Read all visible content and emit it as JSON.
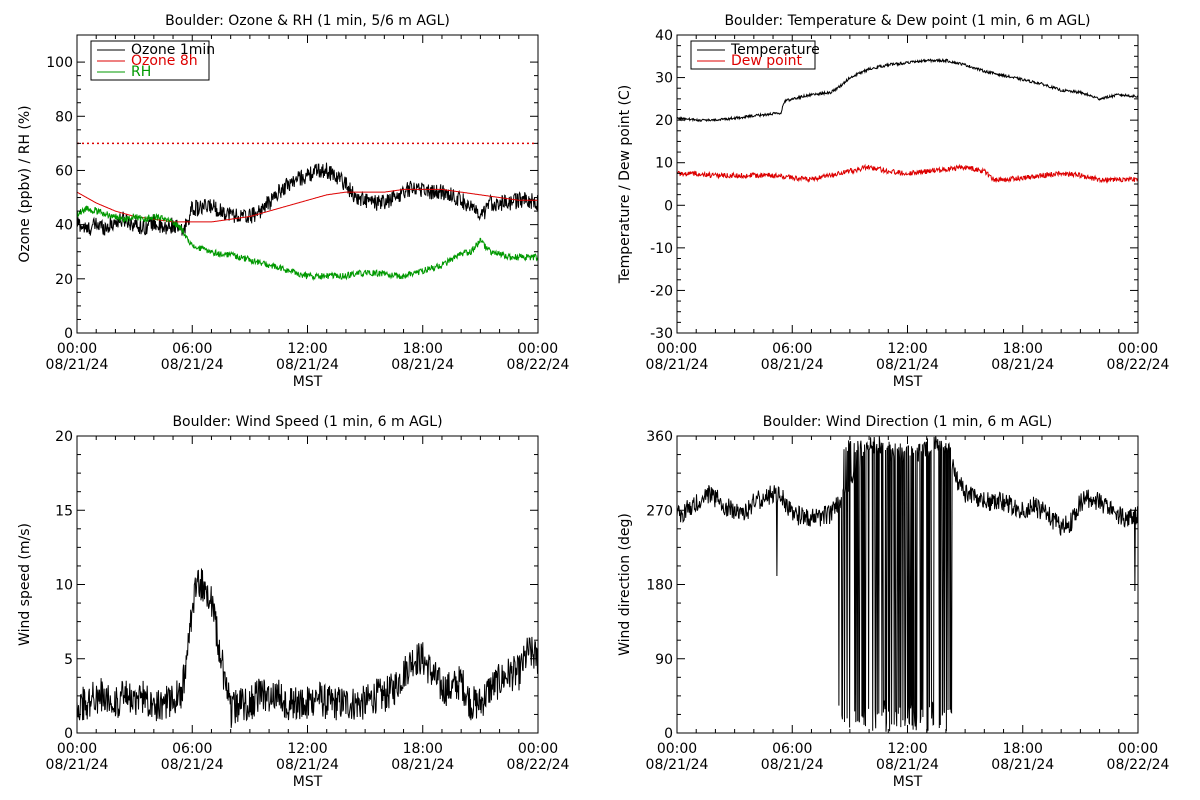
{
  "chart_data": [
    {
      "type": "line",
      "title": "Boulder: Ozone & RH (1 min, 5/6 m AGL)",
      "ylabel": "Ozone (ppbv) / RH (%)",
      "xlabel": "MST",
      "x_ticks": [
        [
          "00:00",
          "08/21/24"
        ],
        [
          "06:00",
          "08/21/24"
        ],
        [
          "12:00",
          "08/21/24"
        ],
        [
          "18:00",
          "08/21/24"
        ],
        [
          "00:00",
          "08/22/24"
        ]
      ],
      "xlim": [
        0,
        24
      ],
      "ylim": [
        0,
        110
      ],
      "yticks": [
        0,
        20,
        40,
        60,
        80,
        100
      ],
      "legend": "top-left",
      "reference_line": {
        "y": 70,
        "color": "#dd0000",
        "style": "dotted"
      },
      "series": [
        {
          "name": "Ozone 1min",
          "color": "#000000",
          "x": [
            0,
            0.5,
            1,
            1.5,
            2,
            2.5,
            3,
            3.5,
            4,
            4.5,
            5,
            5.5,
            6,
            6.5,
            7,
            7.5,
            8,
            8.5,
            9,
            9.5,
            10,
            10.5,
            11,
            11.5,
            12,
            12.5,
            13,
            13.5,
            14,
            14.5,
            15,
            15.5,
            16,
            16.5,
            17,
            17.5,
            18,
            18.5,
            19,
            19.5,
            20,
            20.5,
            21,
            21.5,
            22,
            22.5,
            23,
            23.5,
            24
          ],
          "y": [
            41,
            38,
            40,
            39,
            41,
            42,
            40,
            39,
            41,
            38,
            40,
            37,
            46,
            46,
            47,
            45,
            44,
            43,
            43,
            45,
            48,
            52,
            55,
            57,
            58,
            60,
            60,
            58,
            55,
            50,
            49,
            48,
            48,
            50,
            52,
            54,
            53,
            52,
            52,
            51,
            49,
            47,
            42,
            48,
            48,
            48,
            49,
            49,
            48
          ],
          "noise": 3
        },
        {
          "name": "Ozone 8h",
          "color": "#dd0000",
          "x": [
            0,
            1,
            2,
            3,
            4,
            5,
            6,
            7,
            8,
            9,
            10,
            11,
            12,
            13,
            14,
            15,
            16,
            17,
            18,
            19,
            20,
            21,
            22,
            23,
            24
          ],
          "y": [
            52,
            48,
            45,
            43,
            42,
            41,
            41,
            41,
            42,
            43,
            45,
            47,
            49,
            51,
            52,
            52,
            52,
            53,
            53,
            53,
            52,
            51,
            50,
            49,
            49
          ],
          "noise": 0
        },
        {
          "name": "RH",
          "color": "#009900",
          "x": [
            0,
            0.5,
            1,
            1.5,
            2,
            2.5,
            3,
            3.5,
            4,
            4.5,
            5,
            5.5,
            6,
            6.5,
            7,
            7.5,
            8,
            8.5,
            9,
            9.5,
            10,
            10.5,
            11,
            11.5,
            12,
            12.5,
            13,
            13.5,
            14,
            14.5,
            15,
            15.5,
            16,
            16.5,
            17,
            17.5,
            18,
            18.5,
            19,
            19.5,
            20,
            20.5,
            21,
            21.5,
            22,
            22.5,
            23,
            23.5,
            24
          ],
          "y": [
            44,
            46,
            45,
            44,
            43,
            42,
            43,
            42,
            43,
            42,
            41,
            38,
            32,
            31,
            30,
            29,
            29,
            28,
            27,
            26,
            25,
            24,
            23,
            22,
            21,
            21,
            21,
            21,
            21,
            22,
            22,
            22,
            22,
            21,
            21,
            22,
            23,
            24,
            25,
            27,
            29,
            30,
            34,
            30,
            29,
            28,
            28,
            28,
            28
          ],
          "noise": 1.2
        }
      ]
    },
    {
      "type": "line",
      "title": "Boulder: Temperature & Dew point (1 min, 6 m AGL)",
      "ylabel": "Temperature / Dew point (C)",
      "xlabel": "MST",
      "x_ticks": [
        [
          "00:00",
          "08/21/24"
        ],
        [
          "06:00",
          "08/21/24"
        ],
        [
          "12:00",
          "08/21/24"
        ],
        [
          "18:00",
          "08/21/24"
        ],
        [
          "00:00",
          "08/22/24"
        ]
      ],
      "xlim": [
        0,
        24
      ],
      "ylim": [
        -30,
        40
      ],
      "yticks": [
        -30,
        -20,
        -10,
        0,
        10,
        20,
        30,
        40
      ],
      "legend": "top-left",
      "series": [
        {
          "name": "Temperature",
          "color": "#000000",
          "x": [
            0,
            1,
            2,
            3,
            4,
            5,
            5.4,
            5.6,
            6,
            7,
            8,
            8.5,
            9,
            10,
            11,
            12,
            13,
            14,
            15,
            16,
            17,
            18,
            19,
            20,
            21,
            22,
            23,
            24
          ],
          "y": [
            20.5,
            20,
            20,
            20.5,
            21,
            21.5,
            21.5,
            24.5,
            25,
            26,
            26.5,
            28,
            30,
            32,
            33,
            33.5,
            34,
            34,
            33,
            31.5,
            30.5,
            29.5,
            28.5,
            27,
            26.5,
            25,
            26,
            25.5
          ],
          "noise": 0.3
        },
        {
          "name": "Dew point",
          "color": "#dd0000",
          "x": [
            0,
            1,
            2,
            3,
            4,
            5,
            6,
            7,
            8,
            9,
            10,
            11,
            12,
            13,
            14,
            15,
            16,
            16.5,
            17,
            18,
            19,
            20,
            21,
            22,
            23,
            24
          ],
          "y": [
            7.5,
            7.5,
            7,
            7,
            7,
            7,
            6.5,
            6,
            7,
            8,
            9,
            8,
            7.5,
            8,
            8.5,
            9,
            8,
            6,
            6,
            6.5,
            7,
            7.5,
            7,
            6,
            6,
            6
          ],
          "noise": 0.6
        }
      ]
    },
    {
      "type": "line",
      "title": "Boulder: Wind Speed (1 min, 6 m AGL)",
      "ylabel": "Wind speed (m/s)",
      "xlabel": "MST",
      "x_ticks": [
        [
          "00:00",
          "08/21/24"
        ],
        [
          "06:00",
          "08/21/24"
        ],
        [
          "12:00",
          "08/21/24"
        ],
        [
          "18:00",
          "08/21/24"
        ],
        [
          "00:00",
          "08/22/24"
        ]
      ],
      "xlim": [
        0,
        24
      ],
      "ylim": [
        0,
        20
      ],
      "yticks": [
        0,
        5,
        10,
        15,
        20
      ],
      "legend": "none",
      "series": [
        {
          "color": "#000000",
          "x": [
            0,
            0.5,
            1,
            1.5,
            2,
            2.5,
            3,
            3.5,
            4,
            4.5,
            5,
            5.5,
            6,
            6.2,
            6.5,
            7,
            7.5,
            8,
            8.5,
            9,
            9.5,
            10,
            10.5,
            11,
            11.5,
            12,
            12.5,
            13,
            13.5,
            14,
            14.5,
            15,
            15.5,
            16,
            16.5,
            17,
            17.5,
            18,
            18.5,
            19,
            19.5,
            20,
            20.5,
            21,
            21.5,
            22,
            22.5,
            23,
            23.5,
            24
          ],
          "y": [
            2,
            2,
            2.5,
            2.5,
            2,
            2.5,
            2,
            2.5,
            2,
            2,
            2,
            3,
            8,
            10,
            10,
            9,
            5,
            1.5,
            2,
            2,
            2.5,
            2.5,
            2.5,
            2,
            2,
            2,
            2.5,
            2,
            2,
            2,
            2,
            2,
            2.5,
            2.5,
            3,
            4,
            5,
            5,
            4,
            3,
            3,
            3.5,
            2,
            2,
            3,
            3.5,
            4,
            4,
            5.5,
            5
          ],
          "noise": 1.2
        }
      ]
    },
    {
      "type": "line",
      "title": "Boulder: Wind Direction (1 min, 6 m AGL)",
      "ylabel": "Wind direction (deg)",
      "xlabel": "MST",
      "x_ticks": [
        [
          "00:00",
          "08/21/24"
        ],
        [
          "06:00",
          "08/21/24"
        ],
        [
          "12:00",
          "08/21/24"
        ],
        [
          "18:00",
          "08/21/24"
        ],
        [
          "00:00",
          "08/22/24"
        ]
      ],
      "xlim": [
        0,
        24
      ],
      "ylim": [
        0,
        360
      ],
      "yticks": [
        0,
        90,
        180,
        270,
        360
      ],
      "legend": "none",
      "series": [
        {
          "color": "#000000",
          "x": [
            0,
            0.5,
            1,
            1.5,
            2,
            2.5,
            3,
            3.5,
            4,
            4.5,
            5,
            5.5,
            6,
            6.5,
            7,
            7.5,
            8,
            8.5,
            9,
            9.5,
            10,
            10.5,
            11,
            11.5,
            12,
            12.5,
            13,
            13.5,
            14,
            14.5,
            15,
            15.5,
            16,
            16.5,
            17,
            17.5,
            18,
            18.5,
            19,
            19.5,
            20,
            20.5,
            21,
            21.5,
            22,
            22.5,
            23,
            23.5,
            24
          ],
          "y": [
            265,
            270,
            280,
            290,
            285,
            275,
            270,
            265,
            280,
            285,
            290,
            285,
            265,
            262,
            262,
            262,
            265,
            280,
            300,
            330,
            350,
            350,
            340,
            340,
            340,
            340,
            345,
            350,
            350,
            310,
            290,
            285,
            280,
            280,
            280,
            275,
            270,
            275,
            270,
            260,
            250,
            255,
            280,
            285,
            280,
            270,
            265,
            260,
            265
          ],
          "noise": 12,
          "wrap_window": [
            8.3,
            14.3
          ]
        }
      ]
    }
  ]
}
